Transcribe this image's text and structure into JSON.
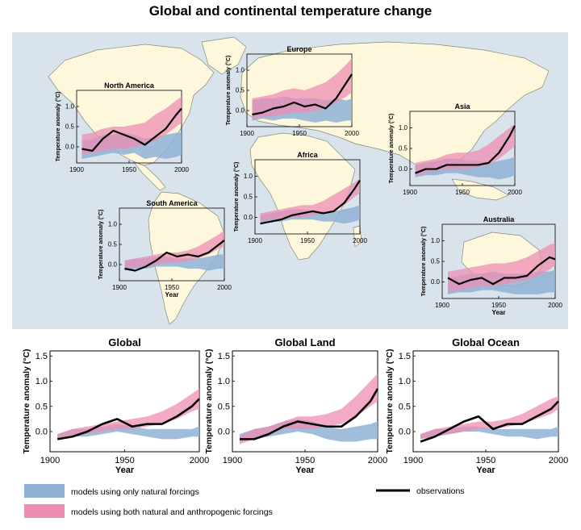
{
  "title": "Global and continental temperature change",
  "colors": {
    "ocean": "#d8e3ec",
    "land": "#fdf8dc",
    "landStroke": "#8a8a7a",
    "natural": "#8fb1d6",
    "anthropogenic": "#ee8db3",
    "observations": "#000000",
    "axis": "#000000"
  },
  "legend": {
    "natural_label": "models using only natural forcings",
    "both_label": "models using both natural and anthropogenic forcings",
    "obs_label": "observations"
  },
  "chart_data": [
    {
      "id": "north-america",
      "type": "line",
      "title": "North America",
      "xlabel": "",
      "ylabel": "Temperature anomaly (°C)",
      "xlim": [
        1900,
        2000
      ],
      "ylim": [
        -0.4,
        1.4
      ],
      "xticks": [
        "1900",
        "1950",
        "2000"
      ],
      "yticks": [
        "0.0",
        "0.5",
        "1.0"
      ],
      "years": [
        1905,
        1915,
        1925,
        1935,
        1945,
        1955,
        1965,
        1975,
        1985,
        1995,
        2000
      ],
      "natural_low": [
        -0.3,
        -0.25,
        -0.2,
        -0.15,
        -0.2,
        -0.15,
        -0.3,
        -0.25,
        -0.3,
        -0.25,
        -0.2
      ],
      "natural_high": [
        0.15,
        0.2,
        0.3,
        0.3,
        0.35,
        0.3,
        0.2,
        0.25,
        0.3,
        0.35,
        0.35
      ],
      "both_low": [
        -0.2,
        -0.15,
        -0.1,
        -0.05,
        -0.05,
        0.0,
        0.05,
        0.15,
        0.3,
        0.5,
        0.6
      ],
      "both_high": [
        0.3,
        0.35,
        0.45,
        0.5,
        0.5,
        0.55,
        0.6,
        0.8,
        0.95,
        1.15,
        1.25
      ],
      "observations": [
        -0.05,
        -0.1,
        0.2,
        0.4,
        0.3,
        0.2,
        0.05,
        0.25,
        0.45,
        0.8,
        0.95
      ]
    },
    {
      "id": "europe",
      "type": "line",
      "title": "Europe",
      "xlabel": "",
      "ylabel": "Temperature anomaly (°C)",
      "xlim": [
        1900,
        2000
      ],
      "ylim": [
        -0.4,
        1.4
      ],
      "xticks": [
        "1900",
        "1950",
        "2000"
      ],
      "yticks": [
        "0.0",
        "0.5",
        "1.0"
      ],
      "years": [
        1905,
        1915,
        1925,
        1935,
        1945,
        1955,
        1965,
        1975,
        1985,
        1995,
        2000
      ],
      "natural_low": [
        -0.25,
        -0.2,
        -0.25,
        -0.2,
        -0.2,
        -0.25,
        -0.3,
        -0.25,
        -0.3,
        -0.25,
        -0.25
      ],
      "natural_high": [
        0.25,
        0.3,
        0.3,
        0.35,
        0.3,
        0.3,
        0.3,
        0.25,
        0.3,
        0.25,
        0.3
      ],
      "both_low": [
        -0.2,
        -0.15,
        -0.15,
        -0.1,
        -0.05,
        -0.05,
        0.0,
        0.05,
        0.2,
        0.35,
        0.45
      ],
      "both_high": [
        0.3,
        0.35,
        0.4,
        0.5,
        0.55,
        0.5,
        0.6,
        0.7,
        0.9,
        1.15,
        1.3
      ],
      "observations": [
        -0.1,
        -0.05,
        0.05,
        0.1,
        0.2,
        0.1,
        0.15,
        0.05,
        0.3,
        0.7,
        0.9
      ]
    },
    {
      "id": "asia",
      "type": "line",
      "title": "Asia",
      "xlabel": "",
      "ylabel": "Temperature anomaly (°C)",
      "xlim": [
        1900,
        2000
      ],
      "ylim": [
        -0.4,
        1.4
      ],
      "xticks": [
        "1900",
        "1950",
        "2000"
      ],
      "yticks": [
        "0.0",
        "0.5",
        "1.0"
      ],
      "years": [
        1905,
        1915,
        1925,
        1935,
        1945,
        1955,
        1965,
        1975,
        1985,
        1995,
        2000
      ],
      "natural_low": [
        -0.2,
        -0.15,
        -0.15,
        -0.1,
        -0.1,
        -0.15,
        -0.2,
        -0.2,
        -0.25,
        -0.2,
        -0.15
      ],
      "natural_high": [
        0.1,
        0.15,
        0.2,
        0.25,
        0.25,
        0.2,
        0.2,
        0.15,
        0.2,
        0.25,
        0.3
      ],
      "both_low": [
        -0.15,
        -0.1,
        -0.05,
        0.0,
        0.0,
        0.0,
        0.05,
        0.1,
        0.25,
        0.45,
        0.55
      ],
      "both_high": [
        0.15,
        0.2,
        0.25,
        0.35,
        0.4,
        0.4,
        0.45,
        0.6,
        0.8,
        1.0,
        1.1
      ],
      "observations": [
        -0.1,
        0.0,
        0.0,
        0.1,
        0.1,
        0.1,
        0.1,
        0.15,
        0.4,
        0.8,
        1.05
      ]
    },
    {
      "id": "africa",
      "type": "line",
      "title": "Africa",
      "xlabel": "",
      "ylabel": "Temperature anomaly (°C)",
      "xlim": [
        1900,
        2000
      ],
      "ylim": [
        -0.4,
        1.4
      ],
      "xticks": [
        "1900",
        "1950",
        "2000"
      ],
      "yticks": [
        "0.0",
        "0.5",
        "1.0"
      ],
      "years": [
        1905,
        1915,
        1925,
        1935,
        1945,
        1955,
        1965,
        1975,
        1985,
        1995,
        2000
      ],
      "natural_low": [
        -0.15,
        -0.1,
        -0.1,
        -0.05,
        -0.05,
        -0.05,
        -0.1,
        -0.1,
        -0.15,
        -0.1,
        -0.05
      ],
      "natural_high": [
        0.05,
        0.1,
        0.15,
        0.2,
        0.2,
        0.15,
        0.15,
        0.15,
        0.2,
        0.25,
        0.3
      ],
      "both_low": [
        -0.1,
        -0.05,
        -0.05,
        0.0,
        0.0,
        0.05,
        0.1,
        0.15,
        0.3,
        0.5,
        0.6
      ],
      "both_high": [
        0.1,
        0.15,
        0.2,
        0.25,
        0.3,
        0.3,
        0.4,
        0.55,
        0.7,
        0.85,
        0.95
      ],
      "observations": [
        -0.15,
        -0.1,
        -0.05,
        0.05,
        0.1,
        0.15,
        0.1,
        0.15,
        0.35,
        0.7,
        0.9
      ]
    },
    {
      "id": "south-america",
      "type": "line",
      "title": "South America",
      "xlabel": "Year",
      "ylabel": "Temperature anomaly (°C)",
      "xlim": [
        1900,
        2000
      ],
      "ylim": [
        -0.4,
        1.4
      ],
      "xticks": [
        "1900",
        "1950",
        "2000"
      ],
      "yticks": [
        "0.0",
        "0.5",
        "1.0"
      ],
      "years": [
        1905,
        1915,
        1925,
        1935,
        1945,
        1955,
        1965,
        1975,
        1985,
        1995,
        2000
      ],
      "natural_low": [
        -0.15,
        -0.1,
        -0.1,
        -0.05,
        -0.05,
        -0.05,
        -0.1,
        -0.1,
        -0.15,
        -0.1,
        -0.1
      ],
      "natural_high": [
        0.1,
        0.15,
        0.15,
        0.2,
        0.2,
        0.15,
        0.15,
        0.15,
        0.2,
        0.25,
        0.25
      ],
      "both_low": [
        -0.1,
        -0.05,
        -0.05,
        0.0,
        0.05,
        0.05,
        0.1,
        0.15,
        0.25,
        0.4,
        0.45
      ],
      "both_high": [
        0.1,
        0.15,
        0.2,
        0.25,
        0.3,
        0.3,
        0.35,
        0.45,
        0.6,
        0.75,
        0.85
      ],
      "observations": [
        -0.1,
        -0.15,
        -0.05,
        0.1,
        0.3,
        0.2,
        0.25,
        0.2,
        0.3,
        0.5,
        0.6
      ]
    },
    {
      "id": "australia",
      "type": "line",
      "title": "Australia",
      "xlabel": "Year",
      "ylabel": "Temperature anomaly (°C)",
      "xlim": [
        1900,
        2000
      ],
      "ylim": [
        -0.4,
        1.4
      ],
      "xticks": [
        "1900",
        "1950",
        "2000"
      ],
      "yticks": [
        "0.0",
        "0.5",
        "1.0"
      ],
      "years": [
        1905,
        1915,
        1925,
        1935,
        1945,
        1955,
        1965,
        1975,
        1985,
        1995,
        2000
      ],
      "natural_low": [
        -0.3,
        -0.25,
        -0.25,
        -0.2,
        -0.2,
        -0.25,
        -0.3,
        -0.3,
        -0.3,
        -0.25,
        -0.25
      ],
      "natural_high": [
        0.1,
        0.15,
        0.2,
        0.2,
        0.25,
        0.2,
        0.2,
        0.2,
        0.25,
        0.25,
        0.3
      ],
      "both_low": [
        -0.25,
        -0.2,
        -0.15,
        -0.1,
        -0.1,
        -0.05,
        0.0,
        0.05,
        0.15,
        0.3,
        0.4
      ],
      "both_high": [
        0.25,
        0.3,
        0.35,
        0.4,
        0.45,
        0.45,
        0.5,
        0.6,
        0.75,
        0.9,
        0.95
      ],
      "observations": [
        0.1,
        -0.05,
        0.05,
        0.1,
        -0.05,
        0.1,
        0.1,
        0.15,
        0.4,
        0.6,
        0.55
      ]
    },
    {
      "id": "global",
      "type": "line",
      "title": "Global",
      "xlabel": "Year",
      "ylabel": "Temperature anomaly (°C)",
      "xlim": [
        1900,
        2000
      ],
      "ylim": [
        -0.4,
        1.6
      ],
      "xticks": [
        "1900",
        "1950",
        "2000"
      ],
      "yticks": [
        "0.0",
        "0.5",
        "1.0",
        "1.5"
      ],
      "years": [
        1905,
        1915,
        1925,
        1935,
        1945,
        1955,
        1965,
        1975,
        1985,
        1995,
        2000
      ],
      "natural_low": [
        -0.15,
        -0.1,
        -0.1,
        -0.05,
        0.0,
        -0.05,
        -0.1,
        -0.15,
        -0.15,
        -0.1,
        -0.1
      ],
      "natural_high": [
        -0.05,
        0.05,
        0.05,
        0.1,
        0.15,
        0.1,
        0.05,
        0.05,
        0.05,
        0.05,
        0.1
      ],
      "both_low": [
        -0.15,
        -0.1,
        -0.05,
        0.0,
        0.05,
        0.05,
        0.1,
        0.15,
        0.25,
        0.4,
        0.45
      ],
      "both_high": [
        -0.05,
        0.05,
        0.1,
        0.15,
        0.2,
        0.25,
        0.3,
        0.4,
        0.55,
        0.75,
        0.85
      ],
      "observations": [
        -0.15,
        -0.1,
        0.0,
        0.15,
        0.25,
        0.1,
        0.15,
        0.15,
        0.3,
        0.5,
        0.65
      ]
    },
    {
      "id": "global-land",
      "type": "line",
      "title": "Global Land",
      "xlabel": "Year",
      "ylabel": "Temperature anomaly (°C)",
      "xlim": [
        1900,
        2000
      ],
      "ylim": [
        -0.4,
        1.6
      ],
      "xticks": [
        "1900",
        "1950",
        "2000"
      ],
      "yticks": [
        "0.0",
        "0.5",
        "1.0",
        "1.5"
      ],
      "years": [
        1905,
        1915,
        1925,
        1935,
        1945,
        1955,
        1965,
        1975,
        1985,
        1995,
        2000
      ],
      "natural_low": [
        -0.2,
        -0.15,
        -0.1,
        -0.05,
        0.0,
        -0.05,
        -0.15,
        -0.2,
        -0.2,
        -0.15,
        -0.15
      ],
      "natural_high": [
        -0.05,
        0.05,
        0.1,
        0.2,
        0.25,
        0.2,
        0.1,
        0.05,
        0.1,
        0.15,
        0.2
      ],
      "both_low": [
        -0.25,
        -0.15,
        -0.05,
        0.05,
        0.05,
        0.05,
        0.1,
        0.15,
        0.3,
        0.5,
        0.6
      ],
      "both_high": [
        -0.1,
        0.05,
        0.1,
        0.2,
        0.3,
        0.3,
        0.35,
        0.45,
        0.7,
        1.0,
        1.15
      ],
      "observations": [
        -0.15,
        -0.15,
        -0.05,
        0.1,
        0.2,
        0.15,
        0.1,
        0.1,
        0.3,
        0.6,
        0.85
      ]
    },
    {
      "id": "global-ocean",
      "type": "line",
      "title": "Global Ocean",
      "xlabel": "Year",
      "ylabel": "Temperature anomaly (°C)",
      "xlim": [
        1900,
        2000
      ],
      "ylim": [
        -0.4,
        1.6
      ],
      "xticks": [
        "1900",
        "1950",
        "2000"
      ],
      "yticks": [
        "0.0",
        "0.5",
        "1.0",
        "1.5"
      ],
      "years": [
        1905,
        1915,
        1925,
        1935,
        1945,
        1955,
        1965,
        1975,
        1985,
        1995,
        2000
      ],
      "natural_low": [
        -0.15,
        -0.1,
        -0.05,
        0.0,
        0.0,
        -0.05,
        -0.1,
        -0.1,
        -0.15,
        -0.1,
        -0.1
      ],
      "natural_high": [
        -0.05,
        0.05,
        0.05,
        0.1,
        0.1,
        0.05,
        0.05,
        0.05,
        0.05,
        0.05,
        0.1
      ],
      "both_low": [
        -0.15,
        -0.1,
        -0.05,
        0.0,
        0.05,
        0.05,
        0.1,
        0.15,
        0.25,
        0.35,
        0.45
      ],
      "both_high": [
        -0.05,
        0.05,
        0.1,
        0.15,
        0.2,
        0.2,
        0.25,
        0.35,
        0.5,
        0.65,
        0.7
      ],
      "observations": [
        -0.2,
        -0.1,
        0.05,
        0.2,
        0.3,
        0.05,
        0.15,
        0.15,
        0.3,
        0.45,
        0.6
      ]
    }
  ]
}
